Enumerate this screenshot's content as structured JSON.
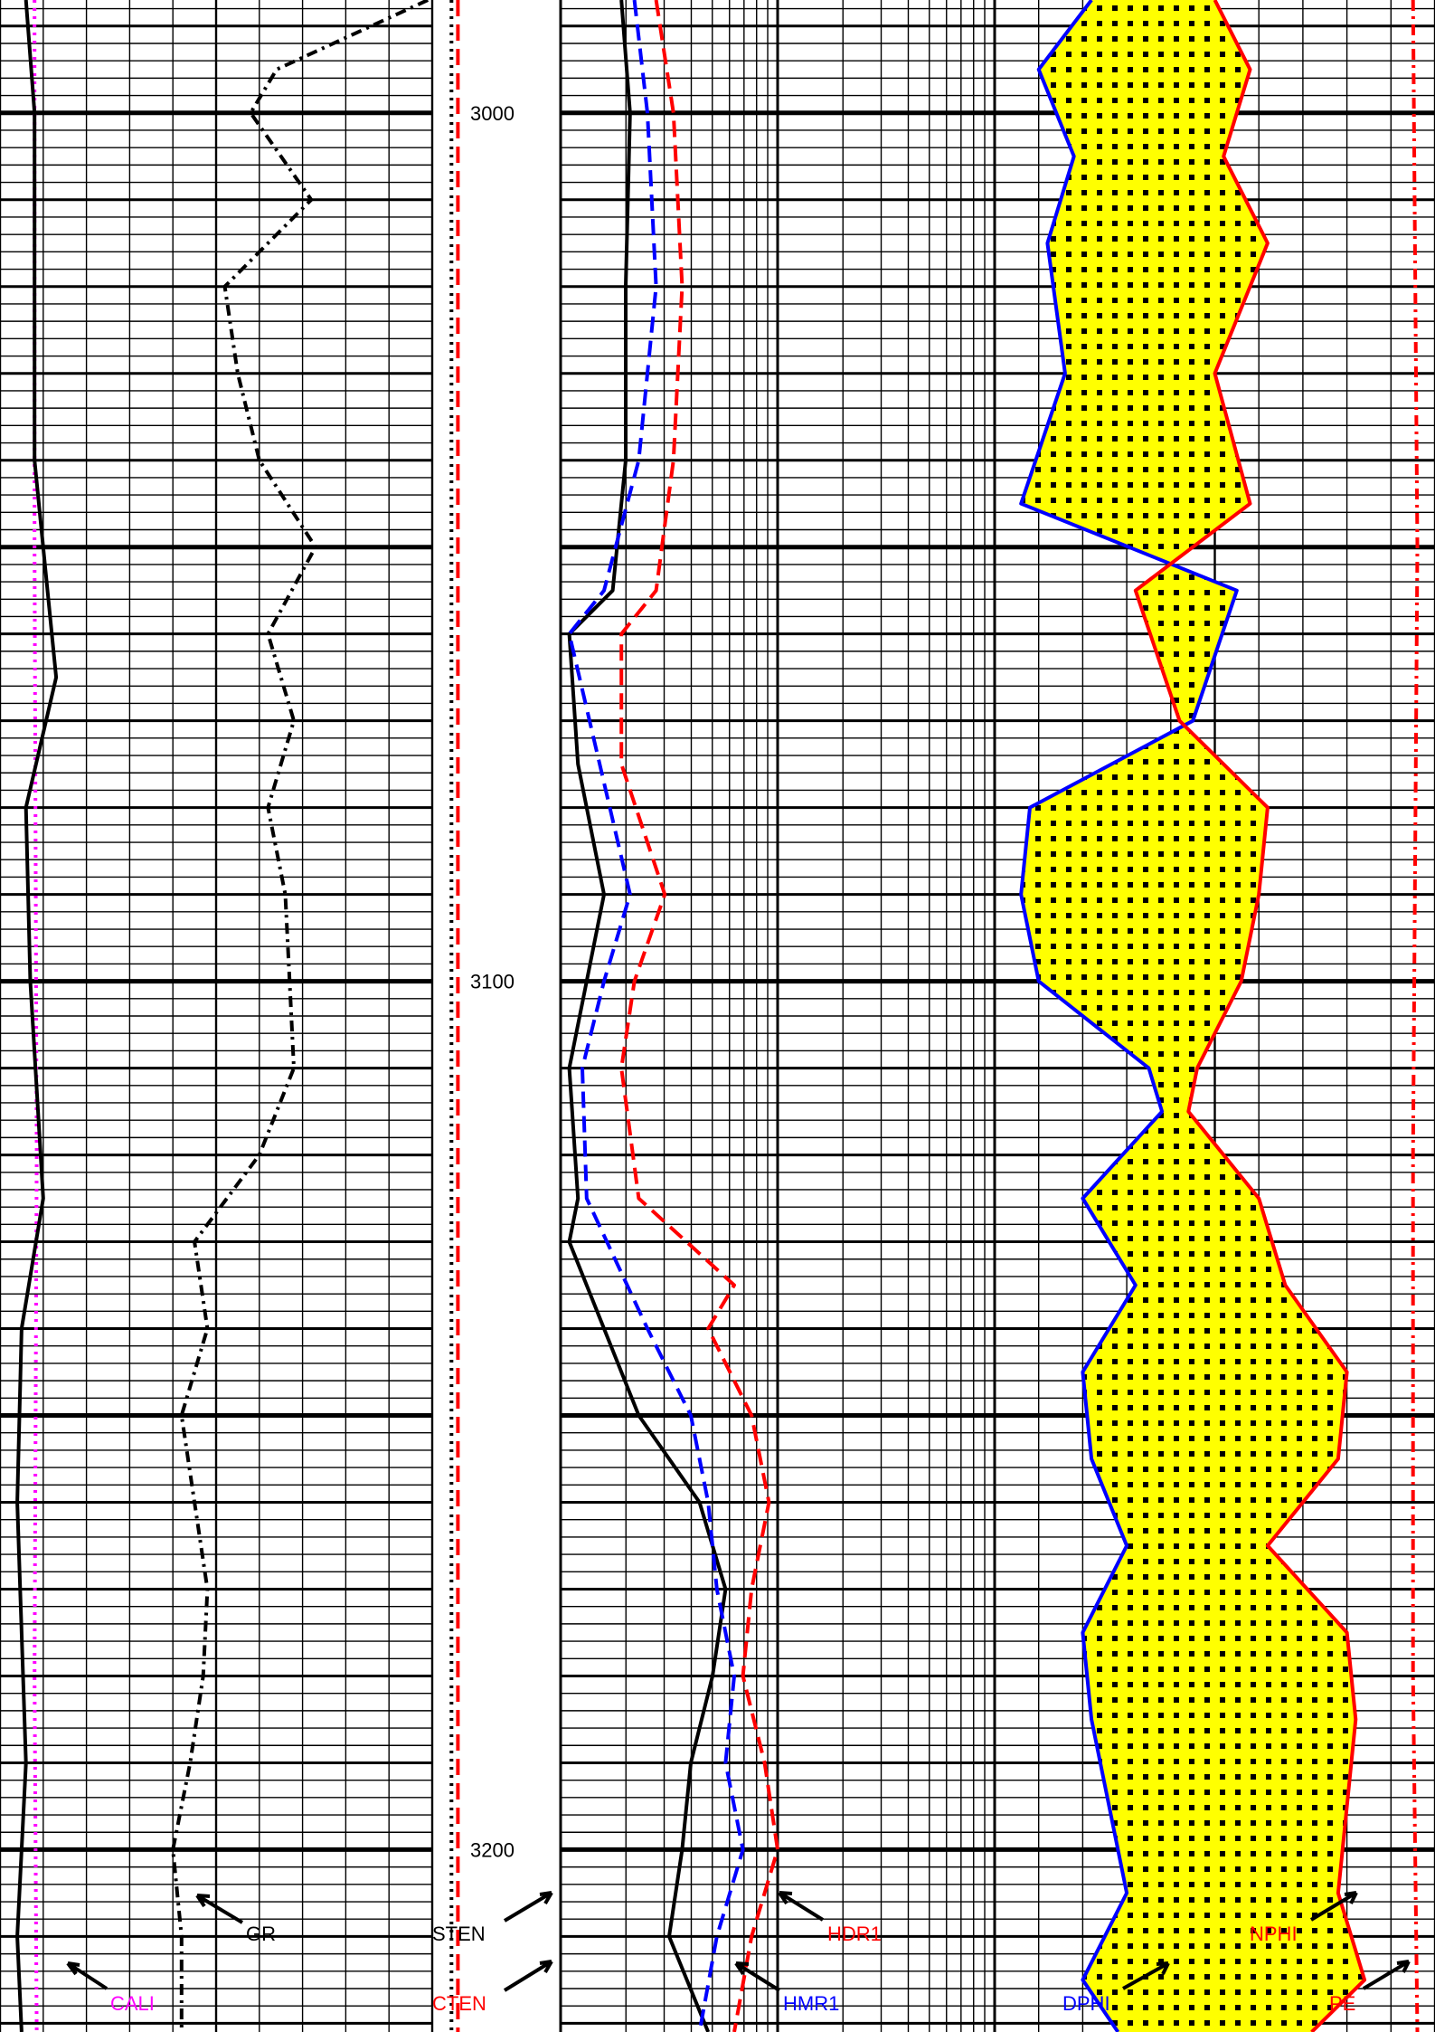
{
  "chart_data": {
    "type": "line",
    "title": "",
    "ylabel": "",
    "depth_range": [
      2987,
      3221
    ],
    "depth_ticks": [
      3000,
      3100,
      3200
    ],
    "tracks": [
      {
        "name": "track-1",
        "series": [
          {
            "name": "CALI",
            "color": "#ff00ff",
            "style": "dotted",
            "depth": [
              2987,
              3050,
              3120,
              3180,
              3221
            ],
            "values": [
              0.08,
              0.08,
              0.085,
              0.08,
              0.085
            ]
          },
          {
            "name": "unlabeled-solid",
            "color": "#000000",
            "style": "solid",
            "depth": [
              2987,
              3000,
              3040,
              3065,
              3080,
              3100,
              3125,
              3140,
              3160,
              3190,
              3210,
              3221
            ],
            "values": [
              0.06,
              0.08,
              0.08,
              0.13,
              0.06,
              0.07,
              0.1,
              0.05,
              0.04,
              0.06,
              0.04,
              0.05
            ]
          },
          {
            "name": "GR",
            "color": "#000000",
            "style": "dashdot",
            "depth": [
              2987,
              2995,
              3000,
              3010,
              3020,
              3030,
              3040,
              3050,
              3060,
              3070,
              3080,
              3090,
              3100,
              3110,
              3120,
              3130,
              3140,
              3150,
              3160,
              3170,
              3180,
              3190,
              3200,
              3210,
              3221
            ],
            "values": [
              0.99,
              0.64,
              0.58,
              0.72,
              0.52,
              0.55,
              0.6,
              0.73,
              0.62,
              0.68,
              0.62,
              0.66,
              0.67,
              0.68,
              0.6,
              0.45,
              0.48,
              0.42,
              0.45,
              0.48,
              0.47,
              0.44,
              0.4,
              0.42,
              0.42
            ]
          }
        ]
      },
      {
        "name": "track-2",
        "series": [
          {
            "name": "CTEN",
            "color": "#ff0000",
            "style": "dashed",
            "depth": [
              2987,
              3221
            ],
            "values": [
              0.2,
              0.2
            ]
          },
          {
            "name": "STEN",
            "color": "#000000",
            "style": "dotted",
            "depth": [
              2987,
              3221
            ],
            "values": [
              0.15,
              0.15
            ]
          }
        ]
      },
      {
        "name": "track-3",
        "series": [
          {
            "name": "unlabeled-solid",
            "color": "#000000",
            "style": "solid",
            "depth": [
              2987,
              3000,
              3020,
              3040,
              3055,
              3060,
              3075,
              3090,
              3100,
              3110,
              3125,
              3130,
              3140,
              3150,
              3160,
              3170,
              3180,
              3190,
              3200,
              3210,
              3221
            ],
            "values": [
              0.14,
              0.16,
              0.15,
              0.15,
              0.12,
              0.02,
              0.04,
              0.1,
              0.06,
              0.02,
              0.04,
              0.02,
              0.1,
              0.18,
              0.32,
              0.38,
              0.35,
              0.3,
              0.28,
              0.25,
              0.34
            ]
          },
          {
            "name": "HMR1",
            "color": "#0000ff",
            "style": "dashed",
            "depth": [
              2987,
              3000,
              3020,
              3040,
              3055,
              3060,
              3075,
              3090,
              3100,
              3110,
              3125,
              3140,
              3150,
              3160,
              3170,
              3180,
              3190,
              3200,
              3210,
              3221
            ],
            "values": [
              0.17,
              0.2,
              0.22,
              0.18,
              0.1,
              0.02,
              0.09,
              0.16,
              0.1,
              0.05,
              0.06,
              0.2,
              0.3,
              0.34,
              0.36,
              0.4,
              0.38,
              0.42,
              0.36,
              0.32
            ]
          },
          {
            "name": "HDR1",
            "color": "#ff0000",
            "style": "dashed",
            "depth": [
              2987,
              3000,
              3020,
              3040,
              3055,
              3060,
              3075,
              3090,
              3100,
              3110,
              3125,
              3135,
              3140,
              3150,
              3160,
              3170,
              3180,
              3190,
              3200,
              3210,
              3221
            ],
            "values": [
              0.22,
              0.26,
              0.28,
              0.26,
              0.22,
              0.14,
              0.14,
              0.24,
              0.17,
              0.14,
              0.18,
              0.4,
              0.34,
              0.44,
              0.48,
              0.44,
              0.42,
              0.47,
              0.5,
              0.44,
              0.4
            ]
          }
        ]
      },
      {
        "name": "track-4",
        "series": [
          {
            "name": "DPHI",
            "color": "#0000ff",
            "style": "solid",
            "depth": [
              2987,
              2995,
              3005,
              3015,
              3030,
              3045,
              3055,
              3070,
              3080,
              3090,
              3100,
              3110,
              3115,
              3125,
              3135,
              3145,
              3155,
              3165,
              3175,
              3185,
              3195,
              3205,
              3215,
              3221
            ],
            "values": [
              0.22,
              0.1,
              0.18,
              0.12,
              0.16,
              0.06,
              0.55,
              0.45,
              0.08,
              0.06,
              0.1,
              0.35,
              0.38,
              0.2,
              0.32,
              0.2,
              0.22,
              0.3,
              0.2,
              0.22,
              0.26,
              0.3,
              0.2,
              0.28
            ]
          },
          {
            "name": "NPHI",
            "color": "#ff0000",
            "style": "solid",
            "depth": [
              2987,
              2995,
              3005,
              3015,
              3030,
              3045,
              3055,
              3070,
              3080,
              3090,
              3100,
              3110,
              3115,
              3125,
              3135,
              3145,
              3155,
              3165,
              3175,
              3185,
              3195,
              3205,
              3215,
              3221
            ],
            "values": [
              0.5,
              0.58,
              0.52,
              0.62,
              0.5,
              0.58,
              0.32,
              0.42,
              0.62,
              0.6,
              0.56,
              0.46,
              0.44,
              0.6,
              0.66,
              0.8,
              0.78,
              0.62,
              0.8,
              0.82,
              0.8,
              0.78,
              0.84,
              0.72
            ]
          },
          {
            "name": "PE",
            "color": "#ff0000",
            "style": "dashdot",
            "depth": [
              2987,
              3050,
              3120,
              3180,
              3221
            ],
            "values": [
              0.95,
              0.96,
              0.95,
              0.95,
              0.96
            ]
          }
        ]
      }
    ],
    "labels": [
      "CALI",
      "GR",
      "STEN",
      "CTEN",
      "HDR1",
      "HMR1",
      "DPHI",
      "NPHI",
      "PE"
    ],
    "fill": {
      "between": [
        "DPHI",
        "NPHI"
      ],
      "color": "#ffff00",
      "pattern": "dots"
    },
    "grid": true
  }
}
